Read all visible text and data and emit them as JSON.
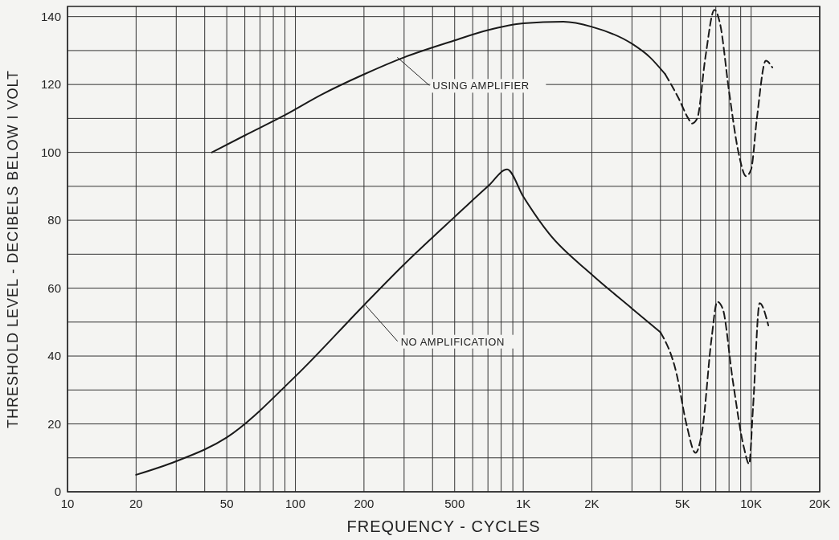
{
  "chart_data": {
    "type": "line",
    "xlabel": "FREQUENCY - CYCLES",
    "ylabel": "THRESHOLD LEVEL - DECIBELS BELOW I VOLT",
    "log": "x",
    "grid": true,
    "xlim": [
      10,
      20000
    ],
    "xticks": [
      10,
      20,
      {
        "value": 30,
        "label": null
      },
      {
        "value": 40,
        "label": null
      },
      50,
      {
        "value": 60,
        "label": null
      },
      {
        "value": 70,
        "label": null
      },
      {
        "value": 80,
        "label": null
      },
      {
        "value": 90,
        "label": null
      },
      100,
      200,
      {
        "value": 300,
        "label": null
      },
      {
        "value": 400,
        "label": null
      },
      500,
      {
        "value": 600,
        "label": null
      },
      {
        "value": 700,
        "label": null
      },
      {
        "value": 800,
        "label": null
      },
      {
        "value": 900,
        "label": null
      },
      {
        "value": 1000,
        "label": "1K"
      },
      {
        "value": 2000,
        "label": "2K"
      },
      {
        "value": 3000,
        "label": null
      },
      {
        "value": 4000,
        "label": null
      },
      {
        "value": 5000,
        "label": "5K"
      },
      {
        "value": 6000,
        "label": null
      },
      {
        "value": 7000,
        "label": null
      },
      {
        "value": 8000,
        "label": null
      },
      {
        "value": 9000,
        "label": null
      },
      {
        "value": 10000,
        "label": "10K"
      },
      {
        "value": 20000,
        "label": "20K"
      }
    ],
    "ylim": [
      0,
      143
    ],
    "yticks": [
      0,
      {
        "value": 10,
        "label": null
      },
      20,
      {
        "value": 30,
        "label": null
      },
      40,
      {
        "value": 50,
        "label": null
      },
      60,
      {
        "value": 70,
        "label": null
      },
      80,
      {
        "value": 90,
        "label": null
      },
      100,
      {
        "value": 110,
        "label": null
      },
      120,
      {
        "value": 130,
        "label": null
      },
      140
    ],
    "series": [
      {
        "color": "#1a1a1a",
        "line_style": "solid",
        "x": [
          43,
          60,
          90,
          130,
          200,
          300,
          500,
          700,
          1000,
          1500,
          2000,
          3000,
          3600,
          4200
        ],
        "values": [
          100,
          105,
          111,
          117,
          123,
          128,
          133,
          136,
          138,
          138.5,
          137,
          132,
          128,
          123
        ]
      },
      {
        "color": "#1a1a1a",
        "line_style": "dashed",
        "x": [
          4200,
          4800,
          5300,
          5500,
          5800,
          6300,
          6900,
          7300,
          8000,
          8800,
          9500,
          10000,
          10600,
          11600,
          12400
        ],
        "values": [
          123,
          116,
          110,
          108.5,
          110,
          128,
          142,
          138,
          118,
          100,
          93,
          95,
          110,
          127,
          125
        ]
      },
      {
        "color": "#1a1a1a",
        "line_style": "solid",
        "x": [
          20,
          30,
          50,
          100,
          200,
          300,
          500,
          700,
          850,
          1000,
          1300,
          2000,
          3000,
          4000
        ],
        "values": [
          5,
          9,
          16,
          34,
          55,
          67,
          81,
          90,
          95,
          87,
          76,
          64,
          54,
          47
        ]
      },
      {
        "color": "#1a1a1a",
        "line_style": "dashed",
        "x": [
          4000,
          4700,
          5200,
          5700,
          6100,
          6700,
          7100,
          7500,
          8300,
          9300,
          9800,
          10200,
          10900,
          11900
        ],
        "values": [
          47,
          35,
          20,
          11.5,
          18,
          45,
          56,
          54,
          33,
          13,
          8.2,
          25,
          55.6,
          49
        ]
      }
    ],
    "annotations": [
      {
        "text": "USING AMPLIFIER",
        "x": 280,
        "y": 128
      },
      {
        "text": "NO AMPLIFICATION",
        "x": 203,
        "y": 55
      }
    ]
  }
}
